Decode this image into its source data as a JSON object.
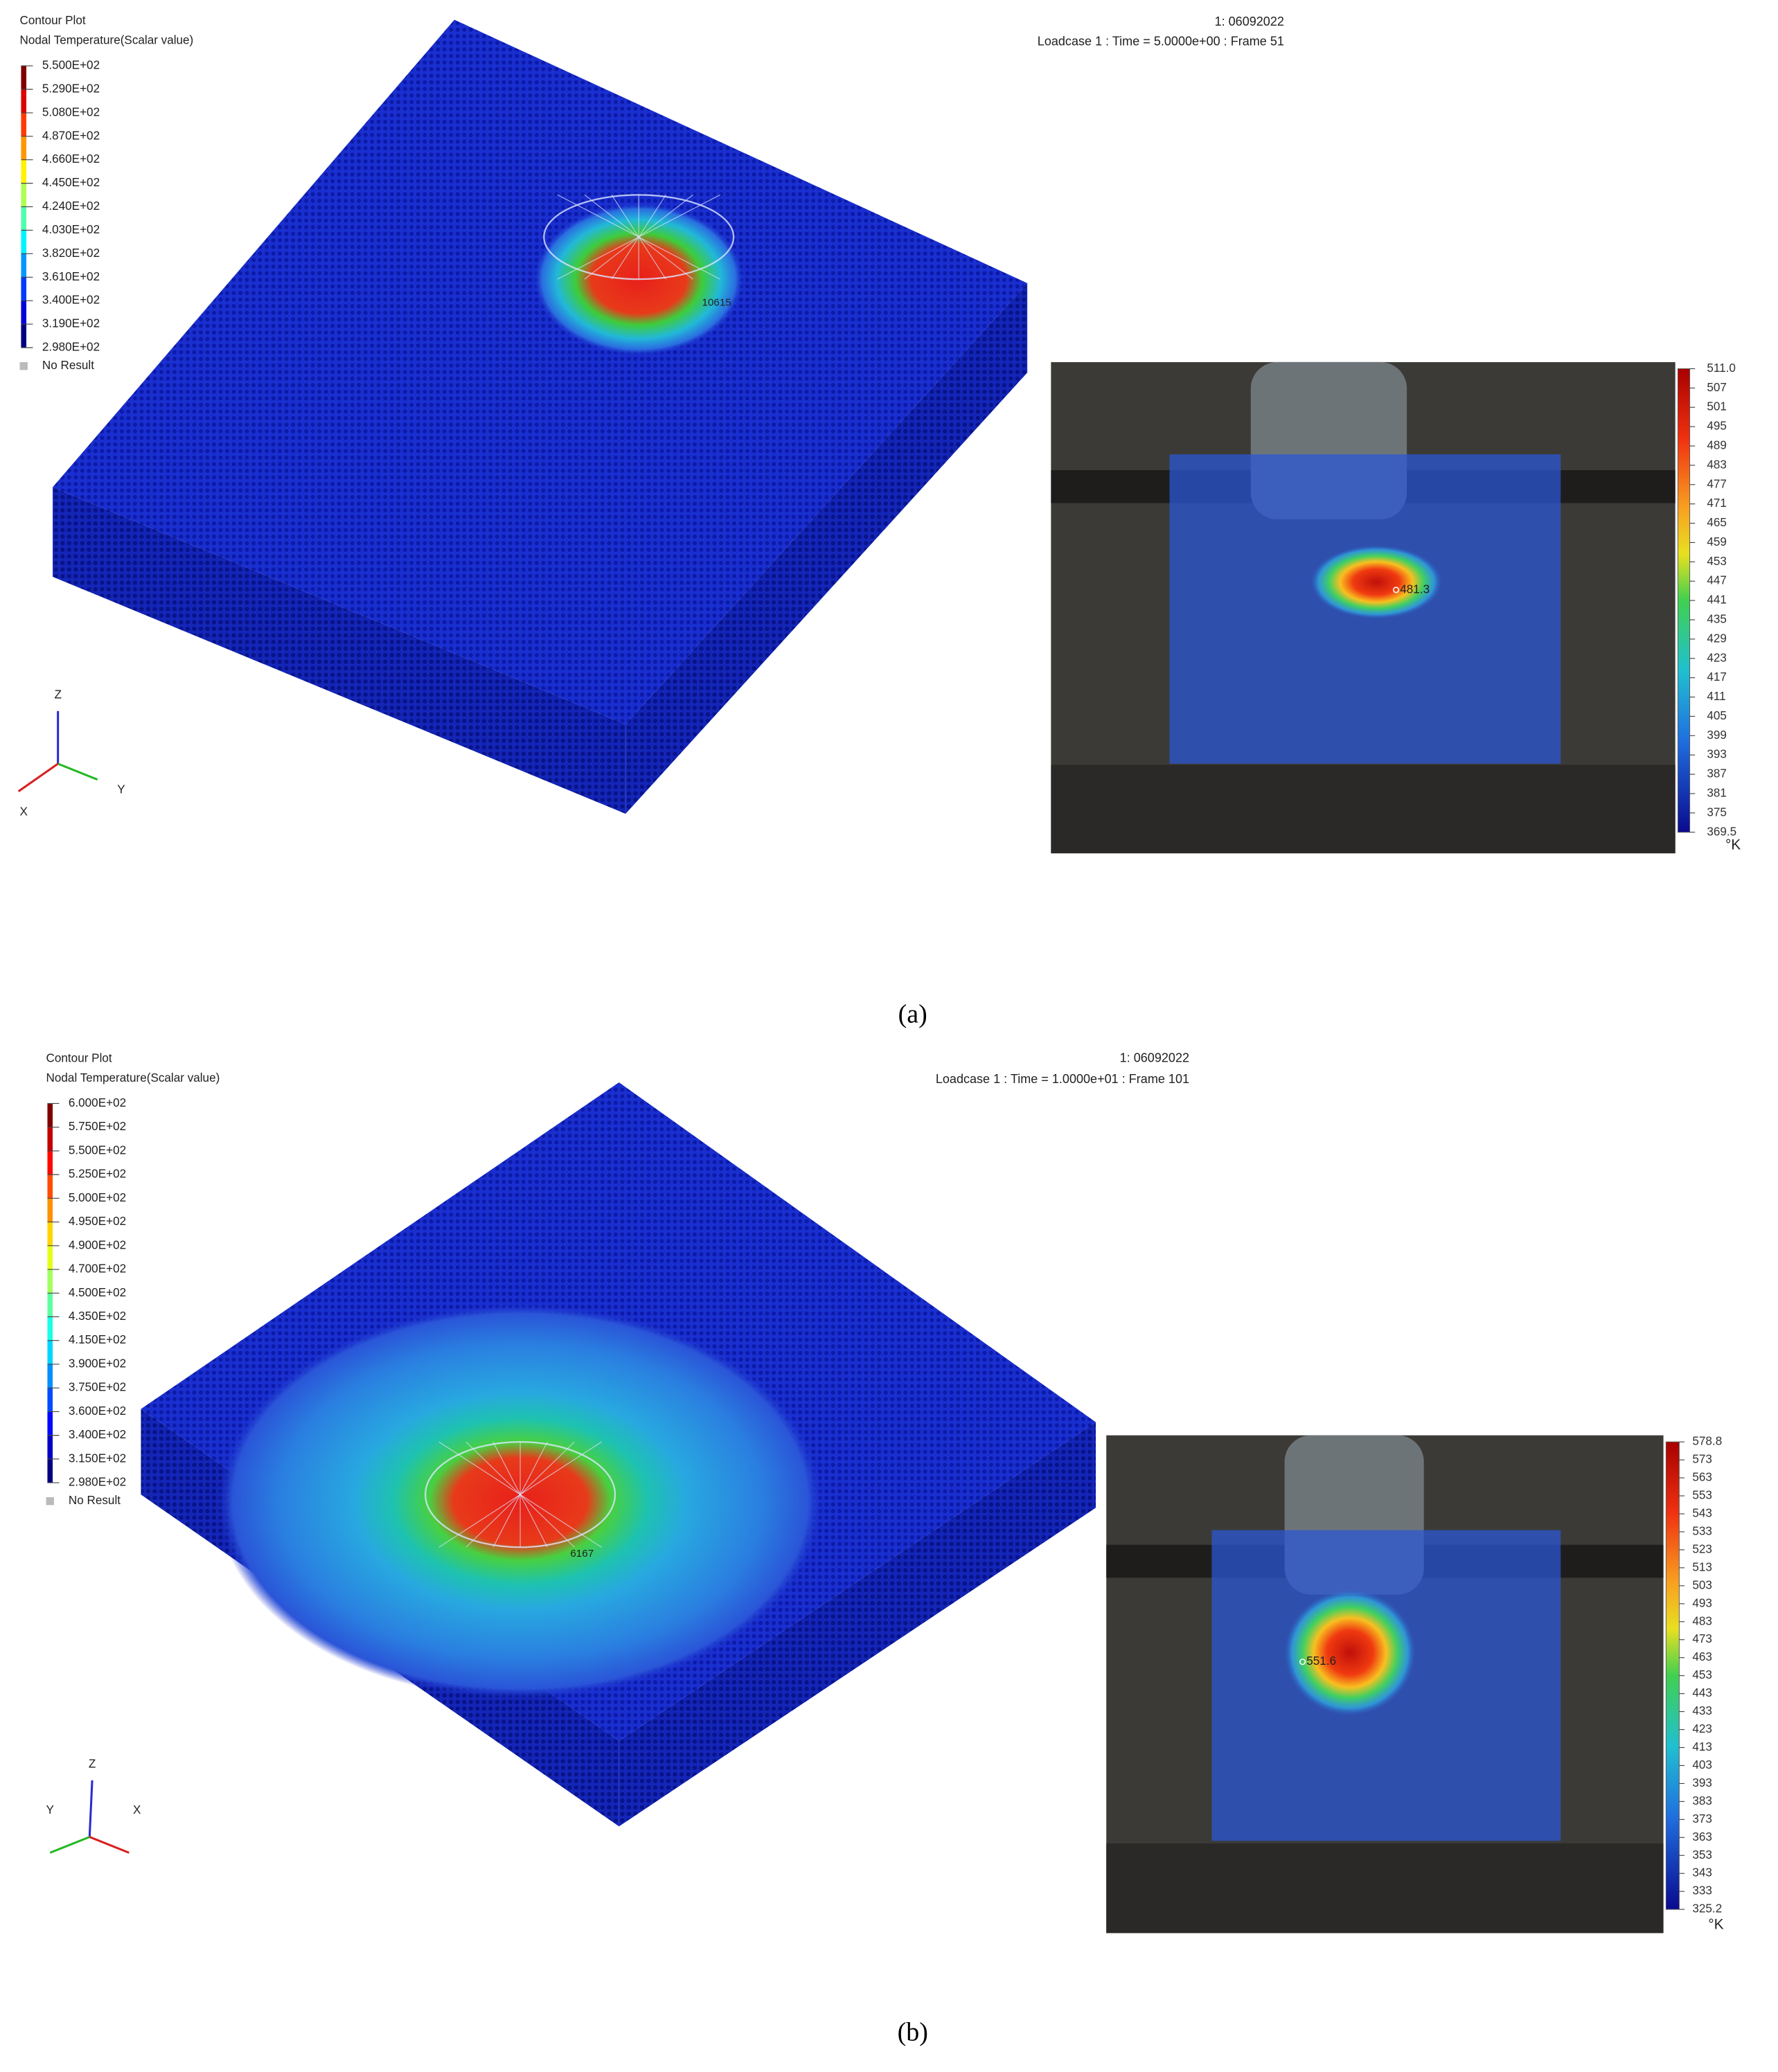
{
  "panels": [
    {
      "caption": "(a)",
      "fe_plot": {
        "title": "Contour Plot",
        "subtitle": "Nodal Temperature(Scalar value)",
        "legend": [
          "5.500E+02",
          "5.290E+02",
          "5.080E+02",
          "4.870E+02",
          "4.660E+02",
          "4.450E+02",
          "4.240E+02",
          "4.030E+02",
          "3.820E+02",
          "3.610E+02",
          "3.400E+02",
          "3.190E+02",
          "2.980E+02"
        ],
        "no_result": "No Result",
        "header": "1: 06092022",
        "loadcase": "Loadcase 1 : Time = 5.0000e+00 : Frame 51",
        "node_label": "10615",
        "axes": [
          "Z",
          "Y",
          "X"
        ]
      },
      "thermal": {
        "scale": [
          "511.0",
          "507",
          "501",
          "495",
          "489",
          "483",
          "477",
          "471",
          "465",
          "459",
          "453",
          "447",
          "441",
          "435",
          "429",
          "423",
          "417",
          "411",
          "405",
          "399",
          "393",
          "387",
          "381",
          "375",
          "369.5"
        ],
        "unit": "°K",
        "spot_label": "481.3"
      }
    },
    {
      "caption": "(b)",
      "fe_plot": {
        "title": "Contour Plot",
        "subtitle": "Nodal Temperature(Scalar value)",
        "legend": [
          "6.000E+02",
          "5.750E+02",
          "5.500E+02",
          "5.250E+02",
          "5.000E+02",
          "4.950E+02",
          "4.900E+02",
          "4.700E+02",
          "4.500E+02",
          "4.350E+02",
          "4.150E+02",
          "3.900E+02",
          "3.750E+02",
          "3.600E+02",
          "3.400E+02",
          "3.150E+02",
          "2.980E+02"
        ],
        "no_result": "No Result",
        "header": "1: 06092022",
        "loadcase": "Loadcase 1 : Time = 1.0000e+01 : Frame 101",
        "node_label": "6167",
        "axes": [
          "Z",
          "Y",
          "X"
        ]
      },
      "thermal": {
        "scale": [
          "578.8",
          "573",
          "563",
          "553",
          "543",
          "533",
          "523",
          "513",
          "503",
          "493",
          "483",
          "473",
          "463",
          "453",
          "443",
          "433",
          "423",
          "413",
          "403",
          "393",
          "383",
          "373",
          "363",
          "353",
          "343",
          "333",
          "325.2"
        ],
        "unit": "°K",
        "spot_label": "551.6"
      }
    }
  ]
}
